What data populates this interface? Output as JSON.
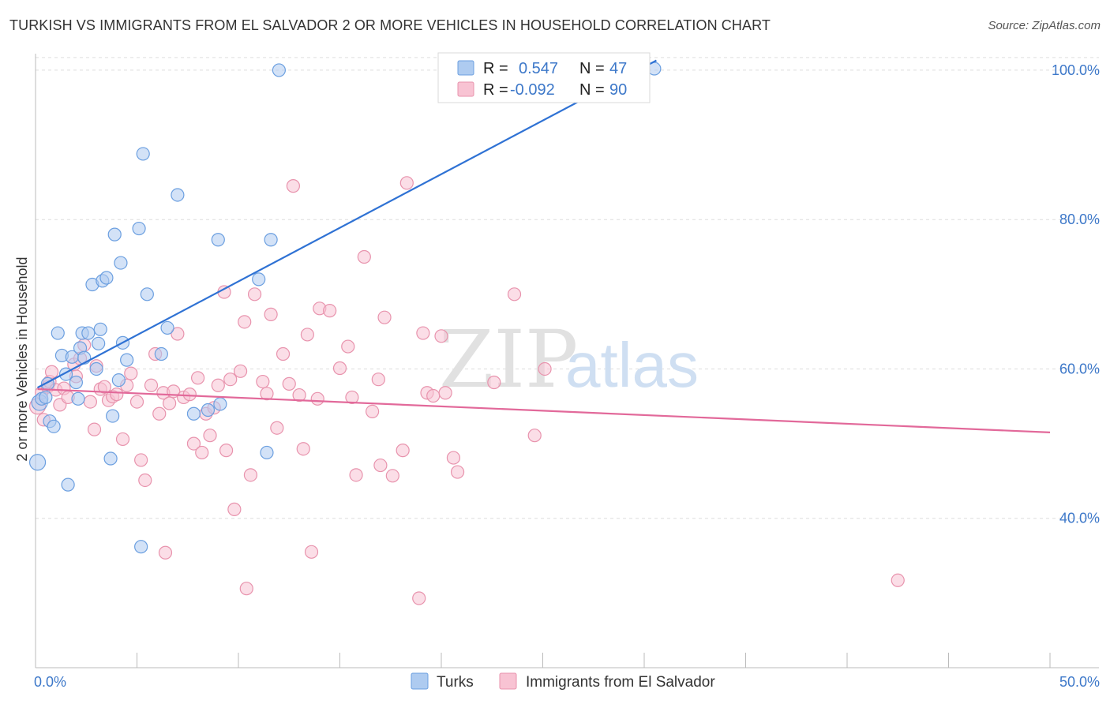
{
  "header": {
    "title": "TURKISH VS IMMIGRANTS FROM EL SALVADOR 2 OR MORE VEHICLES IN HOUSEHOLD CORRELATION CHART",
    "source": "Source: ZipAtlas.com"
  },
  "watermark": {
    "part1": "ZIP",
    "part2": "atlas"
  },
  "legend": {
    "r_label": "R =",
    "n_label": "N =",
    "rows": [
      {
        "r": "0.547",
        "n": "47"
      },
      {
        "r": "-0.092",
        "n": "90"
      }
    ]
  },
  "bottom_legend": [
    {
      "label": "Turks"
    },
    {
      "label": "Immigrants from El Salvador"
    }
  ],
  "colors": {
    "turks_fill": "#aecbf0",
    "turks_stroke": "#6b9fe0",
    "turks_line": "#2f72d4",
    "salv_fill": "#f8c3d3",
    "salv_stroke": "#e893ad",
    "salv_line": "#e2699a",
    "tick": "#3d78c9",
    "grid": "#dddddd"
  },
  "chart_data": {
    "type": "scatter",
    "title": "TURKISH VS IMMIGRANTS FROM EL SALVADOR 2 OR MORE VEHICLES IN HOUSEHOLD CORRELATION CHART",
    "xlabel": "",
    "ylabel": "2 or more Vehicles in Household",
    "xlim": [
      0,
      50
    ],
    "ylim": [
      20,
      102
    ],
    "x_tick_labels": [
      "0.0%",
      "50.0%"
    ],
    "y_ticks": [
      40,
      60,
      80,
      100
    ],
    "y_tick_labels": [
      "40.0%",
      "60.0%",
      "80.0%",
      "100.0%"
    ],
    "grid": true,
    "legend_position": "top-center",
    "series": [
      {
        "name": "Turks",
        "r": 0.547,
        "n": 47,
        "trend": {
          "x": [
            0.1,
            30.6
          ],
          "y": [
            57.5,
            101.3
          ]
        },
        "points": [
          [
            0.1,
            47.5
          ],
          [
            0.2,
            55.5
          ],
          [
            0.3,
            56.0
          ],
          [
            0.5,
            56.2
          ],
          [
            0.6,
            58.0
          ],
          [
            0.7,
            53.0
          ],
          [
            0.9,
            52.3
          ],
          [
            1.1,
            64.8
          ],
          [
            1.3,
            61.8
          ],
          [
            1.5,
            59.3
          ],
          [
            1.6,
            44.5
          ],
          [
            1.8,
            61.6
          ],
          [
            2.0,
            58.2
          ],
          [
            2.1,
            56.0
          ],
          [
            2.2,
            62.8
          ],
          [
            2.3,
            64.8
          ],
          [
            2.4,
            61.5
          ],
          [
            2.6,
            64.8
          ],
          [
            2.8,
            71.3
          ],
          [
            3.0,
            60.0
          ],
          [
            3.1,
            63.4
          ],
          [
            3.2,
            65.3
          ],
          [
            3.3,
            71.8
          ],
          [
            3.5,
            72.2
          ],
          [
            3.7,
            48.0
          ],
          [
            3.8,
            53.7
          ],
          [
            3.9,
            78.0
          ],
          [
            4.1,
            58.5
          ],
          [
            4.2,
            74.2
          ],
          [
            4.3,
            63.5
          ],
          [
            4.5,
            61.2
          ],
          [
            5.1,
            78.8
          ],
          [
            5.2,
            36.2
          ],
          [
            5.3,
            88.8
          ],
          [
            5.5,
            70.0
          ],
          [
            6.2,
            62.0
          ],
          [
            6.5,
            65.5
          ],
          [
            7.0,
            83.3
          ],
          [
            7.8,
            54.0
          ],
          [
            8.5,
            54.5
          ],
          [
            9.0,
            77.3
          ],
          [
            9.1,
            55.3
          ],
          [
            11.0,
            72.0
          ],
          [
            11.4,
            48.8
          ],
          [
            11.6,
            77.3
          ],
          [
            12.0,
            100.0
          ],
          [
            30.5,
            100.2
          ]
        ]
      },
      {
        "name": "Immigrants from El Salvador",
        "r": -0.092,
        "n": 90,
        "trend": {
          "x": [
            0.1,
            50.0
          ],
          "y": [
            57.3,
            51.5
          ]
        },
        "points": [
          [
            0.1,
            55.0
          ],
          [
            0.3,
            56.8
          ],
          [
            0.4,
            53.2
          ],
          [
            0.6,
            57.6
          ],
          [
            0.7,
            58.3
          ],
          [
            0.8,
            59.6
          ],
          [
            1.0,
            57.2
          ],
          [
            1.2,
            55.2
          ],
          [
            1.4,
            57.4
          ],
          [
            1.6,
            56.2
          ],
          [
            1.9,
            60.6
          ],
          [
            2.0,
            59.0
          ],
          [
            2.2,
            61.4
          ],
          [
            2.4,
            63.2
          ],
          [
            2.7,
            55.6
          ],
          [
            2.9,
            51.9
          ],
          [
            3.0,
            60.4
          ],
          [
            3.2,
            57.3
          ],
          [
            3.4,
            57.6
          ],
          [
            3.6,
            55.8
          ],
          [
            3.8,
            56.3
          ],
          [
            4.0,
            56.6
          ],
          [
            4.3,
            50.6
          ],
          [
            4.5,
            57.8
          ],
          [
            4.7,
            59.4
          ],
          [
            5.0,
            55.6
          ],
          [
            5.2,
            47.8
          ],
          [
            5.4,
            45.1
          ],
          [
            5.7,
            57.8
          ],
          [
            5.9,
            62.0
          ],
          [
            6.1,
            54.0
          ],
          [
            6.3,
            56.8
          ],
          [
            6.4,
            35.4
          ],
          [
            6.6,
            55.4
          ],
          [
            6.8,
            57.0
          ],
          [
            7.0,
            64.7
          ],
          [
            7.3,
            56.2
          ],
          [
            7.6,
            56.6
          ],
          [
            7.8,
            50.0
          ],
          [
            8.0,
            58.8
          ],
          [
            8.2,
            48.8
          ],
          [
            8.4,
            54.0
          ],
          [
            8.6,
            51.1
          ],
          [
            8.8,
            54.8
          ],
          [
            9.0,
            57.8
          ],
          [
            9.3,
            70.3
          ],
          [
            9.4,
            49.1
          ],
          [
            9.6,
            58.6
          ],
          [
            9.8,
            41.2
          ],
          [
            10.1,
            59.7
          ],
          [
            10.3,
            66.3
          ],
          [
            10.4,
            30.6
          ],
          [
            10.6,
            45.8
          ],
          [
            10.8,
            70.0
          ],
          [
            11.2,
            58.3
          ],
          [
            11.4,
            56.7
          ],
          [
            11.6,
            67.3
          ],
          [
            11.9,
            52.1
          ],
          [
            12.2,
            62.0
          ],
          [
            12.5,
            58.0
          ],
          [
            12.7,
            84.5
          ],
          [
            13.0,
            56.5
          ],
          [
            13.2,
            49.3
          ],
          [
            13.4,
            64.6
          ],
          [
            13.6,
            35.5
          ],
          [
            13.9,
            56.0
          ],
          [
            14.0,
            68.1
          ],
          [
            14.5,
            67.8
          ],
          [
            15.0,
            60.1
          ],
          [
            15.4,
            63.0
          ],
          [
            15.6,
            56.2
          ],
          [
            15.8,
            45.8
          ],
          [
            16.2,
            75.0
          ],
          [
            16.6,
            54.3
          ],
          [
            16.9,
            58.6
          ],
          [
            17.0,
            47.1
          ],
          [
            17.2,
            66.9
          ],
          [
            17.6,
            45.7
          ],
          [
            18.1,
            49.1
          ],
          [
            18.3,
            84.9
          ],
          [
            18.9,
            29.3
          ],
          [
            19.1,
            64.8
          ],
          [
            19.3,
            56.8
          ],
          [
            19.6,
            56.4
          ],
          [
            20.0,
            64.4
          ],
          [
            20.2,
            56.8
          ],
          [
            20.6,
            48.1
          ],
          [
            20.8,
            46.2
          ],
          [
            22.6,
            58.2
          ],
          [
            23.6,
            70.0
          ],
          [
            24.6,
            51.1
          ],
          [
            25.1,
            60.0
          ],
          [
            42.5,
            31.7
          ]
        ]
      }
    ]
  }
}
